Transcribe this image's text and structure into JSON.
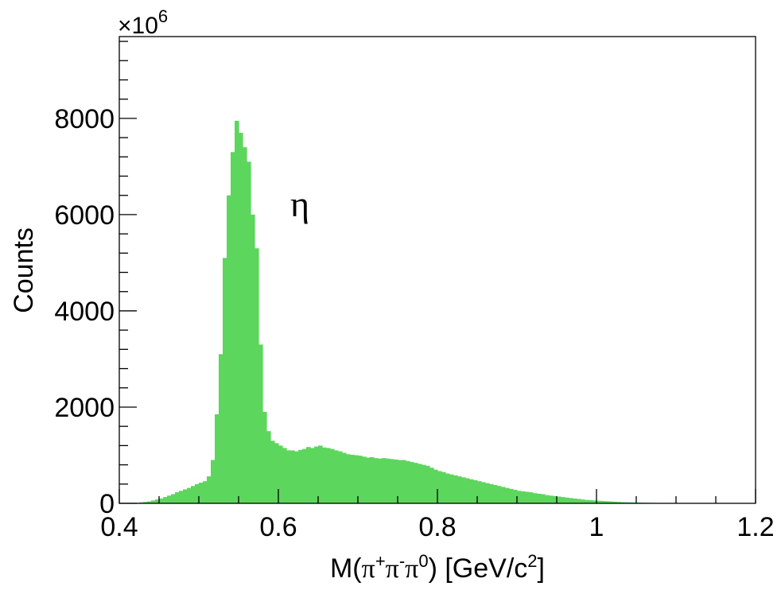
{
  "chart_data": {
    "type": "bar",
    "xlabel": "M(π⁺π⁻π⁰) [GeV/c²]",
    "xlabel_parts": {
      "pre": "M(",
      "pi": "π",
      "plus": "+",
      "minus": "-",
      "zero": "0",
      "mid": ") [GeV/c",
      "two": "2",
      "post": "]"
    },
    "ylabel": "Counts",
    "y_multiplier": {
      "base": "×10",
      "exponent": "6"
    },
    "annotation": "η",
    "xlim": [
      0.4,
      1.2
    ],
    "ylim": [
      0,
      9700
    ],
    "x_ticks": [
      "0.4",
      "0.6",
      "0.8",
      "1",
      "1.2"
    ],
    "y_ticks": [
      "0",
      "2000",
      "4000",
      "6000",
      "8000"
    ],
    "bar_color": "#5cd65c",
    "bin_width": 0.005,
    "bin_start": 0.4,
    "values": [
      0,
      0,
      0,
      0,
      10,
      20,
      30,
      40,
      60,
      80,
      100,
      130,
      160,
      190,
      230,
      260,
      290,
      320,
      360,
      400,
      430,
      460,
      560,
      900,
      1850,
      3100,
      5100,
      6400,
      7300,
      7950,
      7700,
      7400,
      7100,
      6000,
      5300,
      3300,
      1900,
      1500,
      1300,
      1250,
      1200,
      1150,
      1100,
      1100,
      1080,
      1110,
      1130,
      1170,
      1150,
      1180,
      1200,
      1160,
      1150,
      1130,
      1100,
      1080,
      1050,
      1020,
      1010,
      1000,
      990,
      970,
      950,
      960,
      940,
      930,
      940,
      930,
      920,
      910,
      900,
      900,
      880,
      860,
      840,
      820,
      800,
      780,
      740,
      700,
      670,
      650,
      620,
      600,
      580,
      560,
      540,
      520,
      500,
      480,
      460,
      440,
      420,
      400,
      380,
      360,
      340,
      320,
      300,
      280,
      260,
      250,
      240,
      230,
      210,
      200,
      190,
      170,
      160,
      150,
      140,
      130,
      120,
      110,
      100,
      90,
      80,
      70,
      65,
      60,
      55,
      50,
      45,
      40,
      35,
      30,
      25,
      22,
      20,
      18,
      16,
      14,
      12,
      10,
      9,
      8,
      7,
      6,
      5,
      4,
      3,
      2,
      1,
      0,
      0,
      0,
      0,
      0,
      0,
      0,
      0
    ]
  }
}
